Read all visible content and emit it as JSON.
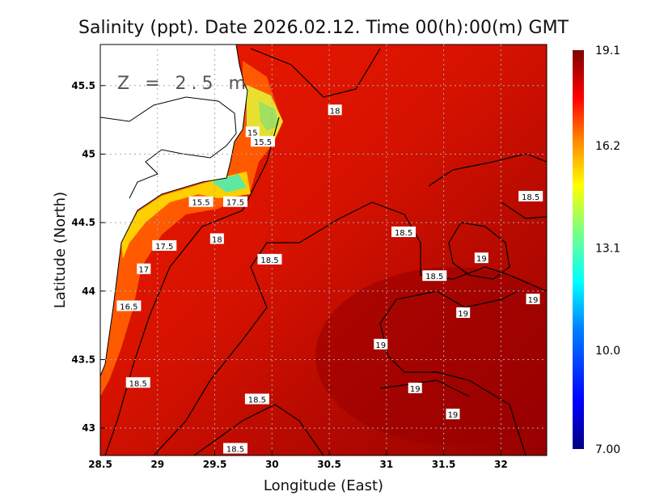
{
  "chart_data": {
    "type": "heatmap",
    "title": "Salinity (ppt). Date 2026.02.12. Time 00(h):00(m) GMT",
    "annotation": "Z = 2.5 m",
    "xlabel": "Longitude (East)",
    "ylabel": "Latitude (North)",
    "xlim": [
      28.5,
      32.4
    ],
    "ylim": [
      42.8,
      45.8
    ],
    "xticks": [
      "28.5",
      "29",
      "29.5",
      "30",
      "30.5",
      "31",
      "31.5",
      "32"
    ],
    "xtick_values": [
      28.5,
      29,
      29.5,
      30,
      30.5,
      31,
      31.5,
      32
    ],
    "yticks": [
      "43",
      "43.5",
      "44",
      "44.5",
      "45",
      "45.5"
    ],
    "ytick_values": [
      43,
      43.5,
      44,
      44.5,
      45,
      45.5
    ],
    "grid": true,
    "colorbar": {
      "range": [
        7.0,
        19.1
      ],
      "tick_labels": [
        "7.00",
        "10.0",
        "13.1",
        "16.2",
        "19.1"
      ],
      "tick_values": [
        7.0,
        10.0,
        13.1,
        16.2,
        19.1
      ],
      "colors": [
        "#00007f",
        "#0000ff",
        "#007fff",
        "#00ffff",
        "#7fff7f",
        "#ffff00",
        "#ff7f00",
        "#ff0000",
        "#7f0000"
      ]
    },
    "contour_labels": [
      {
        "text": "18",
        "lon": 30.55,
        "lat": 45.32
      },
      {
        "text": "15",
        "lon": 29.83,
        "lat": 45.16
      },
      {
        "text": "15.5",
        "lon": 29.92,
        "lat": 45.09
      },
      {
        "text": "15.5",
        "lon": 29.38,
        "lat": 44.65
      },
      {
        "text": "17.5",
        "lon": 29.68,
        "lat": 44.65
      },
      {
        "text": "18",
        "lon": 29.52,
        "lat": 44.38
      },
      {
        "text": "17.5",
        "lon": 29.06,
        "lat": 44.33
      },
      {
        "text": "17",
        "lon": 28.88,
        "lat": 44.16
      },
      {
        "text": "18.5",
        "lon": 29.98,
        "lat": 44.23
      },
      {
        "text": "18.5",
        "lon": 31.15,
        "lat": 44.43
      },
      {
        "text": "18.5",
        "lon": 32.26,
        "lat": 44.69
      },
      {
        "text": "19",
        "lon": 31.83,
        "lat": 44.24
      },
      {
        "text": "18.5",
        "lon": 31.42,
        "lat": 44.11
      },
      {
        "text": "19",
        "lon": 32.28,
        "lat": 43.94
      },
      {
        "text": "19",
        "lon": 31.67,
        "lat": 43.84
      },
      {
        "text": "16.5",
        "lon": 28.75,
        "lat": 43.89
      },
      {
        "text": "19",
        "lon": 30.95,
        "lat": 43.61
      },
      {
        "text": "18.5",
        "lon": 28.83,
        "lat": 43.33
      },
      {
        "text": "19",
        "lon": 31.25,
        "lat": 43.29
      },
      {
        "text": "18.5",
        "lon": 29.87,
        "lat": 43.21
      },
      {
        "text": "19",
        "lon": 31.58,
        "lat": 43.1
      },
      {
        "text": "18.5",
        "lon": 29.68,
        "lat": 42.85
      }
    ]
  }
}
